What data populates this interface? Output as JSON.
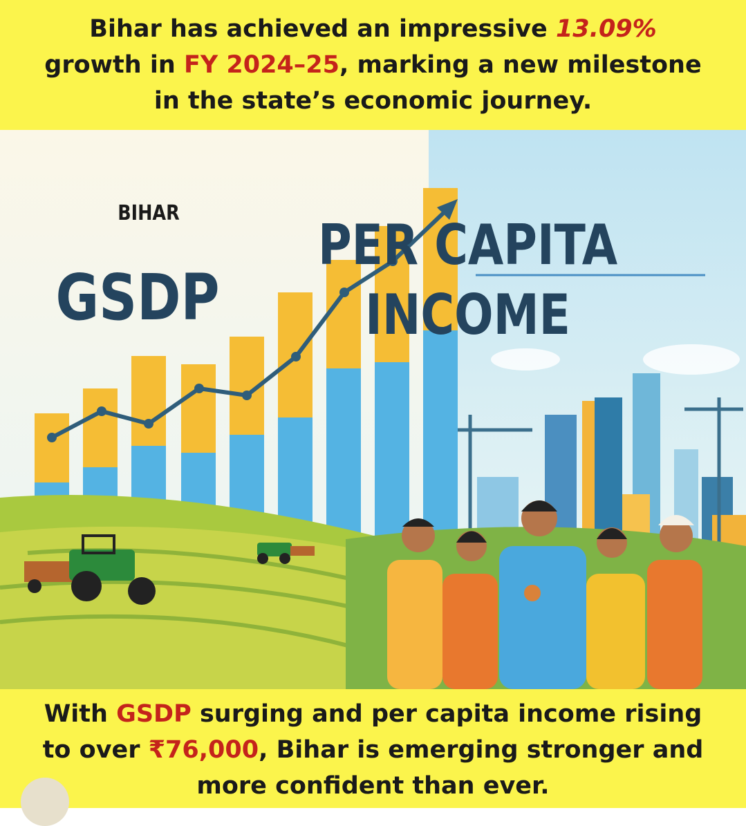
{
  "header": {
    "lines": [
      [
        "Bihar has achieved an impressive ",
        "13.09%"
      ],
      [
        "growth in ",
        "FY 2024–25",
        ", marking a new milestone"
      ],
      [
        "in the state’s economic journey."
      ]
    ]
  },
  "illustration": {
    "logo": "BIHAR",
    "left_label": "GSDP",
    "right_label": [
      "PER CAPITA",
      "INCOME"
    ]
  },
  "footer": {
    "lines": [
      [
        "With ",
        "GSDP",
        " surging and per capita income rising"
      ],
      [
        "to over ",
        "₹76,000",
        ", Bihar is emerging stronger and"
      ],
      [
        "more confident than ever."
      ]
    ]
  }
}
